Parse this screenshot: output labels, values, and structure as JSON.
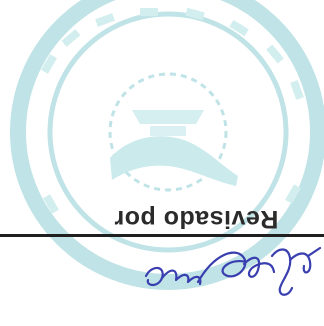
{
  "document": {
    "field_label": "Revisado por"
  },
  "stamp": {
    "shape": "circular",
    "color": "#bfe3e6"
  },
  "signature": {
    "color": "#3a3fb0"
  },
  "rule": {
    "color": "#1f1f1f"
  }
}
